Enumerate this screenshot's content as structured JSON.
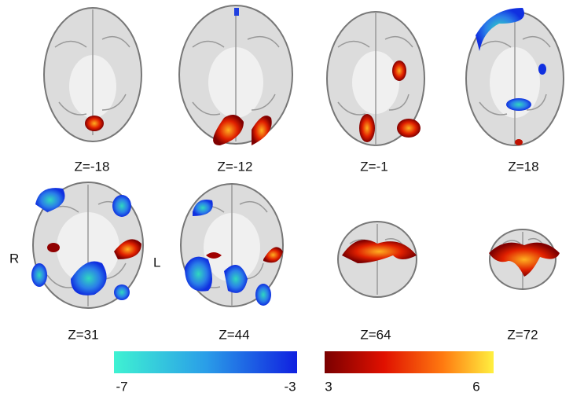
{
  "slices": [
    {
      "label": "Z=-18"
    },
    {
      "label": "Z=-12"
    },
    {
      "label": "Z=-1"
    },
    {
      "label": "Z=18"
    },
    {
      "label": "Z=31"
    },
    {
      "label": "Z=44"
    },
    {
      "label": "Z=64"
    },
    {
      "label": "Z=72"
    }
  ],
  "orientation": {
    "right": "R",
    "left": "L"
  },
  "colorbars": [
    {
      "min_label": "-7",
      "max_label": "-3"
    },
    {
      "min_label": "3",
      "max_label": "6"
    }
  ]
}
